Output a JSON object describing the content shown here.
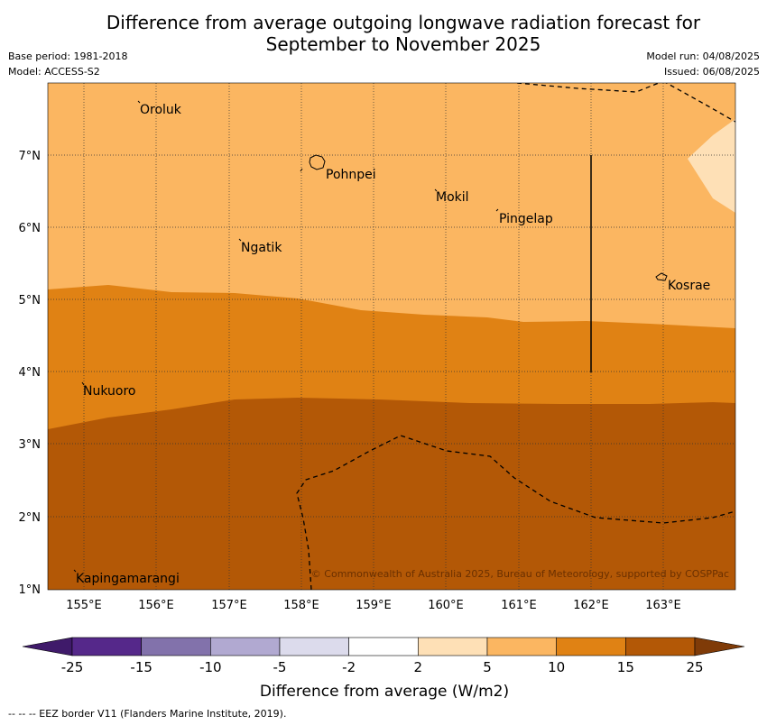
{
  "title_line1": "Difference from average outgoing longwave radiation forecast for",
  "title_line2": "September to November 2025",
  "base_period": "Base period: 1981-2018",
  "model": "Model: ACCESS-S2",
  "model_run": "Model run: 04/08/2025",
  "issued": "Issued: 06/08/2025",
  "lat_labels": [
    "7°N",
    "6°N",
    "5°N",
    "4°N",
    "3°N",
    "2°N",
    "1°N"
  ],
  "lon_labels": [
    "155°E",
    "156°E",
    "157°E",
    "158°E",
    "159°E",
    "160°E",
    "161°E",
    "162°E",
    "163°E"
  ],
  "places": [
    "Oroluk",
    "Pohnpei",
    "Mokil",
    "Pingelap",
    "Ngatik",
    "Kosrae",
    "Nukuoro",
    "Kapingamarangi"
  ],
  "copyright": "© Commonwealth of Australia 2025, Bureau of Meteorology, supported by COSPPac",
  "colorbar": {
    "ticks": [
      "-25",
      "-15",
      "-10",
      "-5",
      "-2",
      "2",
      "5",
      "10",
      "15",
      "25"
    ],
    "colors": [
      "#3f1a6a",
      "#55288a",
      "#8272ab",
      "#b1a9d1",
      "#dcdbec",
      "#ffffff",
      "#fee0b6",
      "#fbb661",
      "#e08214",
      "#b35806",
      "#7f3b08"
    ],
    "label": "Difference from average (W/m2)"
  },
  "map_colors": {
    "low": "#fbb661",
    "mid": "#e08214",
    "high": "#b35806",
    "lightest": "#fee0b6"
  },
  "footnote": "--  --  -- EEZ border V11 (Flanders Marine Institute, 2019)."
}
